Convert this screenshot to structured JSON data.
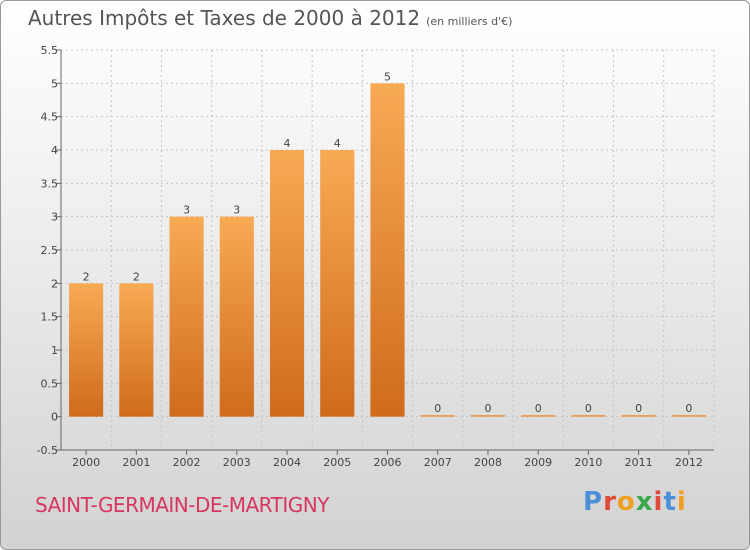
{
  "chart_data": {
    "type": "bar",
    "title": "Autres Impôts et Taxes de 2000 à 2012",
    "unit": "(en milliers d'€)",
    "categories": [
      "2000",
      "2001",
      "2002",
      "2003",
      "2004",
      "2005",
      "2006",
      "2007",
      "2008",
      "2009",
      "2010",
      "2011",
      "2012"
    ],
    "values": [
      2,
      2,
      3,
      3,
      4,
      4,
      5,
      0,
      0,
      0,
      0,
      0,
      0
    ],
    "ylim": [
      -0.5,
      5.5
    ],
    "yticks": [
      "-0.5",
      "0",
      "0.5",
      "1",
      "1.5",
      "2",
      "2.5",
      "3",
      "3.5",
      "4",
      "4.5",
      "5",
      "5.5"
    ],
    "grid": true,
    "bar_color": "#f0923a"
  },
  "footer": {
    "commune": "SAINT-GERMAIN-DE-MARTIGNY",
    "logo": [
      "P",
      "r",
      "o",
      "x",
      "i",
      "t",
      "i"
    ]
  }
}
